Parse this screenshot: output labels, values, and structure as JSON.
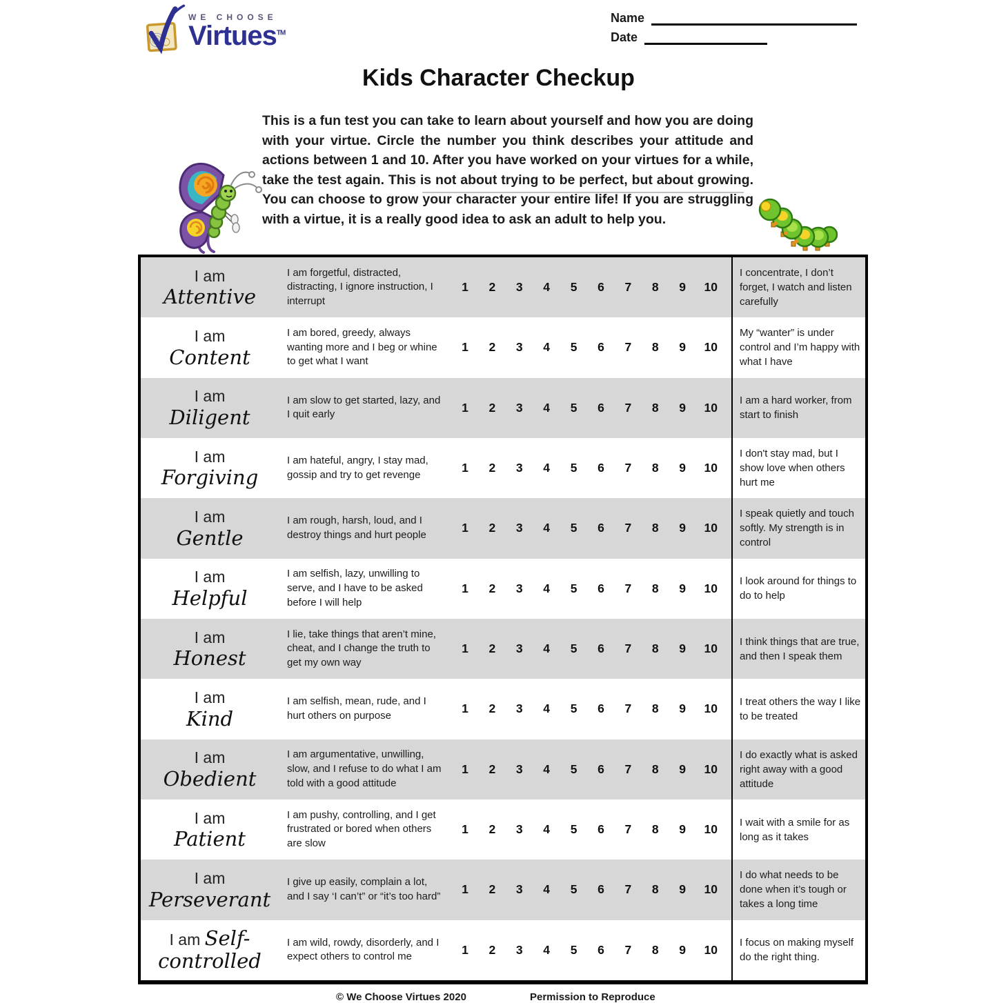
{
  "logo": {
    "tagline": "WE CHOOSE",
    "brand": "Virtues",
    "tm": "TM",
    "brand_color": "#2e3192",
    "gold": "#c9992e"
  },
  "header_fields": {
    "name_label": "Name",
    "date_label": "Date"
  },
  "title": "Kids Character Checkup",
  "intro": "This is a fun test you can take to learn about yourself and how you are doing with your virtue. Circle the number you think describes your attitude and actions between 1 and 10. After you have worked on your virtues for a while, take the test again. This is not about trying to be perfect, but about growing. You can choose to grow your character your entire life! If you are struggling with a virtue, it is a really good idea to ask an adult to help you.",
  "icons": {
    "logo": "checkmark-icon",
    "left_illustration": "butterfly",
    "right_illustration": "caterpillar"
  },
  "scale": [
    "1",
    "2",
    "3",
    "4",
    "5",
    "6",
    "7",
    "8",
    "9",
    "10"
  ],
  "colors": {
    "row_shade": "#d7d7d7",
    "border": "#000000"
  },
  "rows": [
    {
      "prefix": "I am",
      "virtue": "Attentive",
      "shaded": true,
      "inline_prefix": false,
      "negative": "I am forgetful, distracted, distracting, I ignore instruction, I interrupt",
      "positive": "I concentrate, I don’t forget, I watch and listen carefully"
    },
    {
      "prefix": "I am",
      "virtue": "Content",
      "shaded": false,
      "inline_prefix": false,
      "negative": "I am bored, greedy, always wanting more and I beg or whine to get what I want",
      "positive": "My “wanter” is under control and I’m happy with what I have"
    },
    {
      "prefix": "I am",
      "virtue": "Diligent",
      "shaded": true,
      "inline_prefix": false,
      "negative": "I am slow to get started, lazy, and I quit early",
      "positive": "I am a hard worker, from start to finish"
    },
    {
      "prefix": "I am",
      "virtue": "Forgiving",
      "shaded": false,
      "inline_prefix": false,
      "negative": "I am hateful, angry, I stay mad, gossip and try to get revenge",
      "positive": "I don't stay mad, but I show love when others hurt me"
    },
    {
      "prefix": "I am",
      "virtue": "Gentle",
      "shaded": true,
      "inline_prefix": false,
      "negative": "I am rough, harsh, loud, and I destroy things and hurt people",
      "positive": "I speak quietly and touch softly. My strength is in control"
    },
    {
      "prefix": "I am",
      "virtue": "Helpful",
      "shaded": false,
      "inline_prefix": false,
      "negative": "I am selfish, lazy, unwilling to serve, and I have to be asked before I will help",
      "positive": "I look around for things to do to help"
    },
    {
      "prefix": "I am",
      "virtue": "Honest",
      "shaded": true,
      "inline_prefix": false,
      "negative": "I lie, take things that aren’t mine, cheat, and I change the truth to get my own way",
      "positive": "I think things that are true, and then I speak them"
    },
    {
      "prefix": "I am",
      "virtue": "Kind",
      "shaded": false,
      "inline_prefix": false,
      "negative": "I am selfish, mean, rude, and I hurt others on purpose",
      "positive": "I treat others the way I like to be treated"
    },
    {
      "prefix": "I am",
      "virtue": "Obedient",
      "shaded": true,
      "inline_prefix": false,
      "negative": "I am argumentative, unwilling, slow, and I refuse to do what I am told with a good attitude",
      "positive": "I do exactly what is asked right away with a good attitude"
    },
    {
      "prefix": "I am",
      "virtue": "Patient",
      "shaded": false,
      "inline_prefix": false,
      "negative": "I am pushy, controlling, and I get frustrated or bored when others are slow",
      "positive": "I wait with a smile for as long as it takes"
    },
    {
      "prefix": "I am",
      "virtue": "Perseverant",
      "shaded": true,
      "inline_prefix": false,
      "negative": "I give up easily, complain a lot, and I say ‘I can’t” or “it’s too hard”",
      "positive": "I do what needs to be done when it’s tough or takes a long time"
    },
    {
      "prefix": "I am",
      "virtue": "Self-controlled",
      "shaded": false,
      "inline_prefix": true,
      "negative": "I am wild, rowdy, disorderly, and I expect others to control me",
      "positive": "I focus on making myself do the right thing."
    }
  ],
  "footer": {
    "copyright": "© We Choose Virtues 2020",
    "permission": "Permission to Reproduce"
  }
}
